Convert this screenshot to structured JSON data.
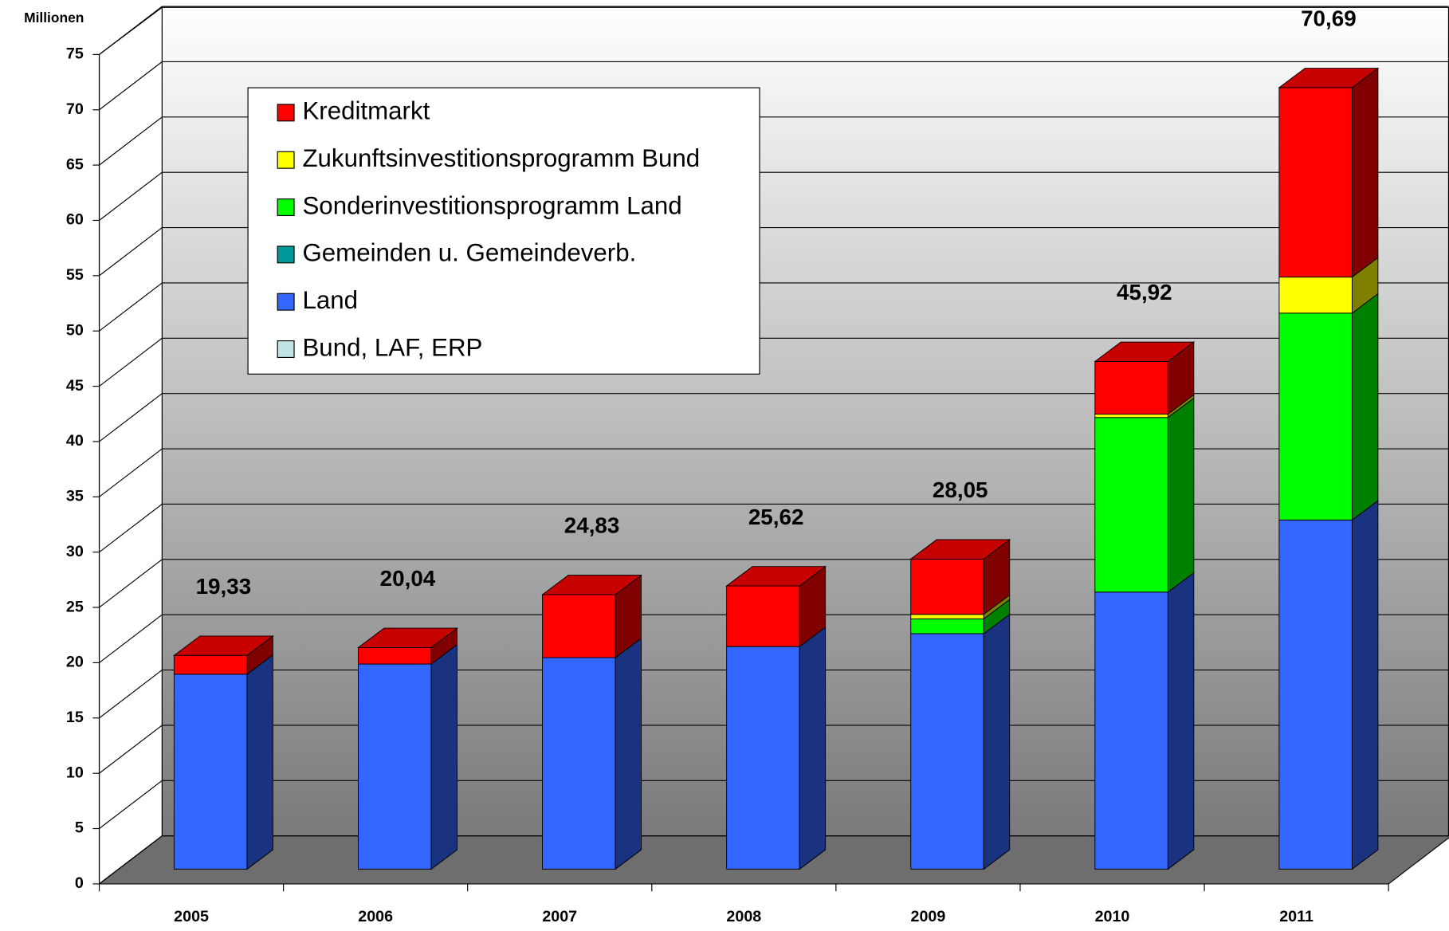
{
  "chart_data": {
    "type": "bar3d_stacked",
    "y_label": "Millionen",
    "categories": [
      "2005",
      "2006",
      "2007",
      "2008",
      "2009",
      "2010",
      "2011"
    ],
    "series": [
      {
        "name": "Bund, LAF, ERP",
        "color": "#c0e4e4",
        "values": [
          0,
          0,
          0,
          0,
          0,
          0,
          0
        ]
      },
      {
        "name": "Land",
        "color": "#3366ff",
        "values": [
          17.63,
          18.55,
          19.13,
          20.13,
          21.3,
          25.06,
          31.58
        ]
      },
      {
        "name": "Gemeinden u. Gemeindeverb.",
        "color": "#009999",
        "values": [
          0,
          0,
          0,
          0,
          0,
          0,
          0
        ]
      },
      {
        "name": "Sonderinvestitionsprogramm Land",
        "color": "#00ff00",
        "values": [
          0,
          0,
          0,
          0,
          1.34,
          15.79,
          18.71
        ]
      },
      {
        "name": "Zukunftsinvestitionsprogramm Bund",
        "color": "#ffff00",
        "values": [
          0,
          0,
          0,
          0,
          0.4,
          0.3,
          3.26
        ]
      },
      {
        "name": "Kreditmarkt",
        "color": "#ff0000",
        "values": [
          1.7,
          1.49,
          5.7,
          5.49,
          5.01,
          4.77,
          17.14
        ]
      }
    ],
    "totals": [
      19.33,
      20.04,
      24.83,
      25.62,
      28.05,
      45.92,
      70.69
    ],
    "total_labels": [
      "19,33",
      "20,04",
      "24,83",
      "25,62",
      "28,05",
      "45,92",
      "70,69"
    ],
    "ylim": [
      0,
      75
    ],
    "yticks": [
      0,
      5,
      10,
      15,
      20,
      25,
      30,
      35,
      40,
      45,
      50,
      55,
      60,
      65,
      70,
      75
    ],
    "grid": true
  }
}
